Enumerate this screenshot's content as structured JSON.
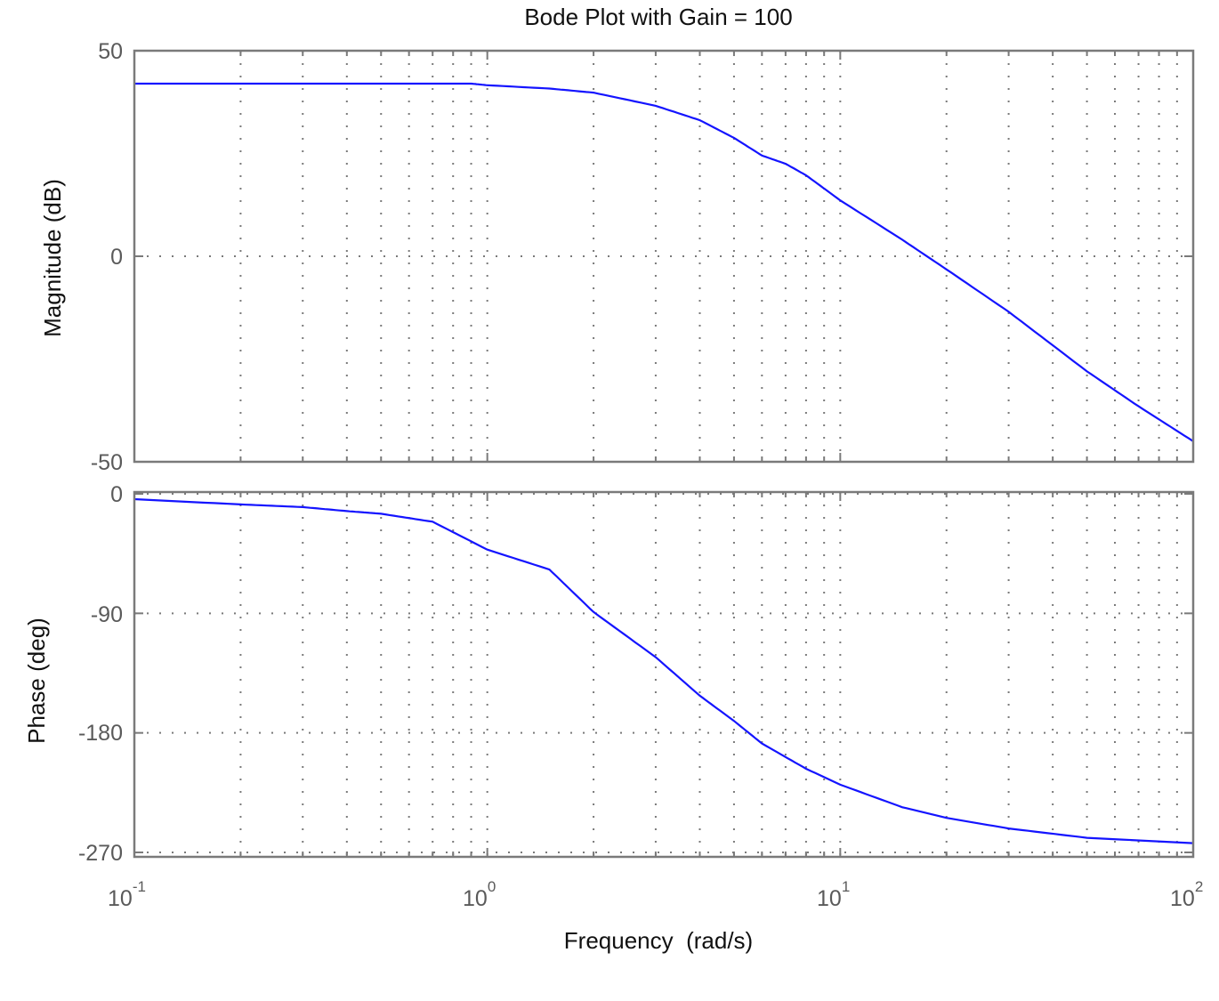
{
  "chart_data": [
    {
      "type": "line",
      "panel": "magnitude",
      "title": "Bode Plot with Gain = 100",
      "xlabel": "Frequency  (rad/s)",
      "ylabel": "Magnitude (dB)",
      "xscale": "log",
      "xlim": [
        0.1,
        100
      ],
      "ylim": [
        -50,
        50
      ],
      "yticks": [
        50,
        0,
        -50
      ],
      "grid": true,
      "color": "#1414ff",
      "x": [
        0.1,
        0.2,
        0.5,
        0.9,
        1,
        1.5,
        2,
        3,
        4,
        5,
        6,
        7,
        8,
        10,
        15,
        20,
        30,
        50,
        70,
        100
      ],
      "values": [
        42,
        42,
        42,
        42,
        41.6,
        40.8,
        39.8,
        36.6,
        33.1,
        28.8,
        24.5,
        22.5,
        19.7,
        13.6,
        4.0,
        -3.2,
        -13.5,
        -28,
        -36.5,
        -45
      ]
    },
    {
      "type": "line",
      "panel": "phase",
      "xlabel": "Frequency  (rad/s)",
      "ylabel": "Phase (deg)",
      "xscale": "log",
      "xlim": [
        0.1,
        100
      ],
      "ylim": [
        -270,
        0
      ],
      "yticks": [
        0,
        -90,
        -180,
        -270
      ],
      "grid": true,
      "color": "#1414ff",
      "x": [
        0.1,
        0.2,
        0.3,
        0.4,
        0.5,
        0.7,
        1,
        1.5,
        2,
        3,
        4,
        5,
        6,
        8,
        10,
        15,
        20,
        30,
        50,
        100
      ],
      "values": [
        -4,
        -8,
        -10,
        -13,
        -15,
        -21,
        -42,
        -57,
        -89,
        -123,
        -152,
        -171,
        -188,
        -207,
        -219,
        -236,
        -244,
        -252,
        -259,
        -263
      ]
    }
  ],
  "figure": {
    "title": "Bode Plot with Gain = 100",
    "xlabel": "Frequency  (rad/s)",
    "mag_ylabel": "Magnitude (dB)",
    "phase_ylabel": "Phase (deg)",
    "mag_ticks": [
      "50",
      "0",
      "-50"
    ],
    "phase_ticks": [
      "0",
      "-90",
      "-180",
      "-270"
    ],
    "x_ticks": [
      {
        "base": "10",
        "exp": "-1"
      },
      {
        "base": "10",
        "exp": "0"
      },
      {
        "base": "10",
        "exp": "1"
      },
      {
        "base": "10",
        "exp": "2"
      }
    ]
  }
}
